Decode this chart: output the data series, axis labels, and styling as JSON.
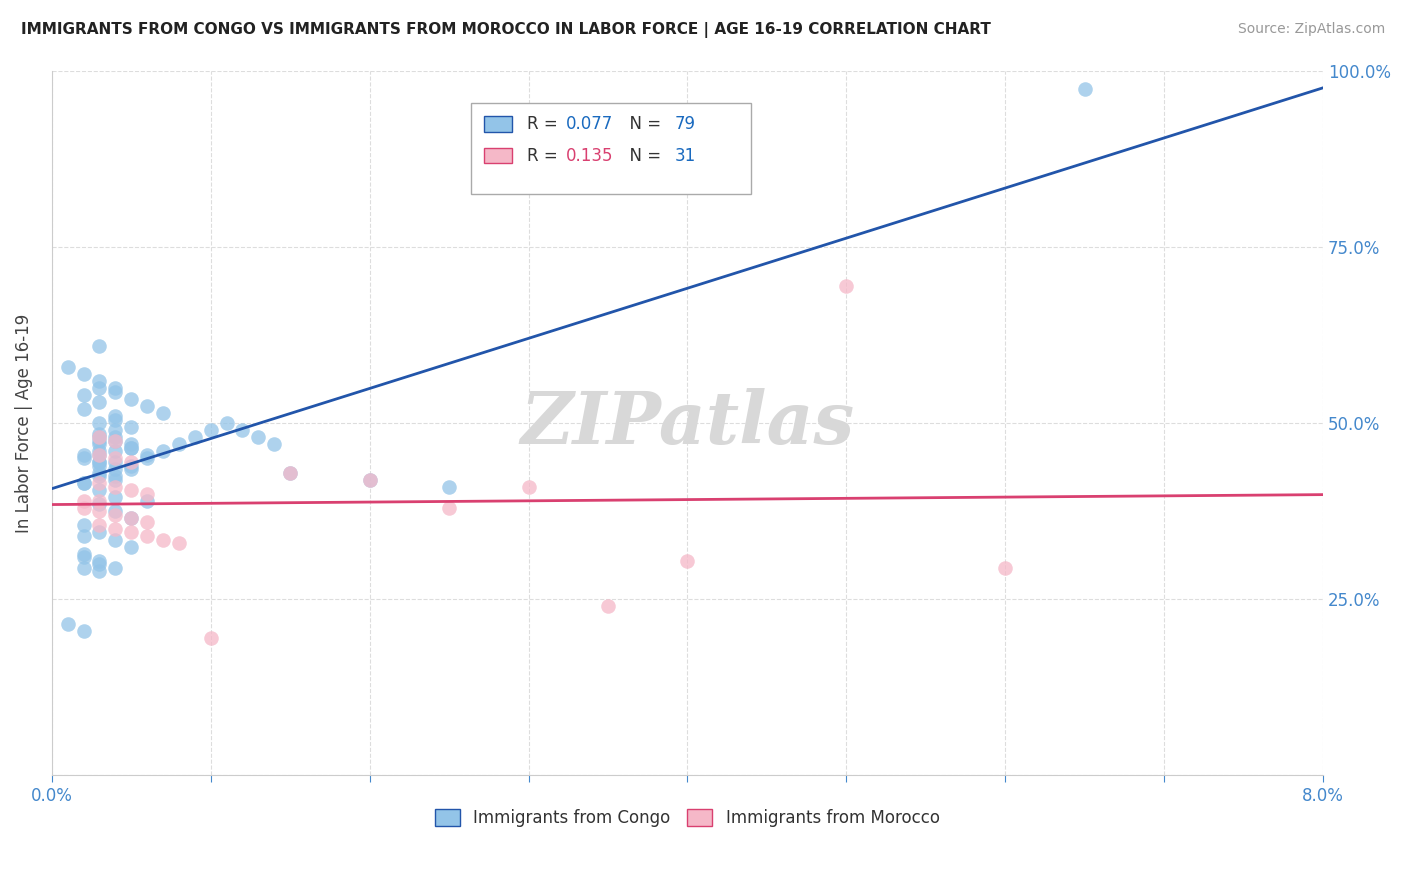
{
  "title": "IMMIGRANTS FROM CONGO VS IMMIGRANTS FROM MOROCCO IN LABOR FORCE | AGE 16-19 CORRELATION CHART",
  "source": "Source: ZipAtlas.com",
  "ylabel": "In Labor Force | Age 16-19",
  "xlim": [
    0.0,
    0.08
  ],
  "ylim": [
    0.0,
    1.0
  ],
  "xticks": [
    0.0,
    0.01,
    0.02,
    0.03,
    0.04,
    0.05,
    0.06,
    0.07,
    0.08
  ],
  "xticklabels": [
    "0.0%",
    "",
    "",
    "",
    "",
    "",
    "",
    "",
    "8.0%"
  ],
  "yticks": [
    0.0,
    0.25,
    0.5,
    0.75,
    1.0
  ],
  "yticklabels": [
    "",
    "25.0%",
    "50.0%",
    "75.0%",
    "100.0%"
  ],
  "congo_color": "#93c4e8",
  "congo_line_color": "#2255aa",
  "morocco_color": "#f5b8c8",
  "morocco_line_color": "#d94070",
  "congo_R": 0.077,
  "congo_N": 79,
  "morocco_R": 0.135,
  "morocco_N": 31,
  "r_color_congo": "#1a6abf",
  "r_color_morocco": "#d94070",
  "n_color": "#1a6abf",
  "watermark_text": "ZIPatlas",
  "watermark_color": "#d8d8d8",
  "tick_color": "#4488cc",
  "congo_x": [
    0.002,
    0.003,
    0.003,
    0.004,
    0.004,
    0.005,
    0.005,
    0.003,
    0.004,
    0.002,
    0.003,
    0.003,
    0.004,
    0.002,
    0.003,
    0.004,
    0.005,
    0.003,
    0.003,
    0.002,
    0.004,
    0.004,
    0.003,
    0.003,
    0.002,
    0.003,
    0.004,
    0.005,
    0.006,
    0.007,
    0.004,
    0.005,
    0.003,
    0.004,
    0.005,
    0.006,
    0.003,
    0.004,
    0.003,
    0.002,
    0.003,
    0.004,
    0.005,
    0.006,
    0.007,
    0.008,
    0.009,
    0.01,
    0.011,
    0.012,
    0.013,
    0.014,
    0.002,
    0.003,
    0.002,
    0.003,
    0.001,
    0.002,
    0.001,
    0.002,
    0.003,
    0.004,
    0.003,
    0.004,
    0.005,
    0.002,
    0.003,
    0.004,
    0.005,
    0.002,
    0.003,
    0.004,
    0.015,
    0.02,
    0.025,
    0.065,
    0.006,
    0.003,
    0.002
  ],
  "congo_y": [
    0.455,
    0.46,
    0.475,
    0.48,
    0.49,
    0.47,
    0.465,
    0.5,
    0.51,
    0.52,
    0.53,
    0.44,
    0.445,
    0.45,
    0.43,
    0.425,
    0.435,
    0.445,
    0.455,
    0.415,
    0.42,
    0.46,
    0.47,
    0.48,
    0.54,
    0.55,
    0.545,
    0.535,
    0.525,
    0.515,
    0.505,
    0.495,
    0.485,
    0.475,
    0.465,
    0.455,
    0.445,
    0.435,
    0.425,
    0.415,
    0.405,
    0.395,
    0.44,
    0.45,
    0.46,
    0.47,
    0.48,
    0.49,
    0.5,
    0.49,
    0.48,
    0.47,
    0.31,
    0.3,
    0.295,
    0.29,
    0.215,
    0.205,
    0.58,
    0.57,
    0.56,
    0.55,
    0.385,
    0.375,
    0.365,
    0.355,
    0.345,
    0.335,
    0.325,
    0.315,
    0.305,
    0.295,
    0.43,
    0.42,
    0.41,
    0.975,
    0.39,
    0.61,
    0.34
  ],
  "morocco_x": [
    0.003,
    0.004,
    0.005,
    0.003,
    0.004,
    0.005,
    0.006,
    0.002,
    0.003,
    0.004,
    0.005,
    0.006,
    0.003,
    0.004,
    0.005,
    0.006,
    0.007,
    0.008,
    0.003,
    0.004,
    0.015,
    0.02,
    0.025,
    0.03,
    0.035,
    0.04,
    0.002,
    0.003,
    0.05,
    0.06,
    0.01
  ],
  "morocco_y": [
    0.455,
    0.45,
    0.445,
    0.415,
    0.41,
    0.405,
    0.4,
    0.38,
    0.375,
    0.37,
    0.365,
    0.36,
    0.355,
    0.35,
    0.345,
    0.34,
    0.335,
    0.33,
    0.48,
    0.475,
    0.43,
    0.42,
    0.38,
    0.41,
    0.24,
    0.305,
    0.39,
    0.39,
    0.695,
    0.295,
    0.195
  ]
}
